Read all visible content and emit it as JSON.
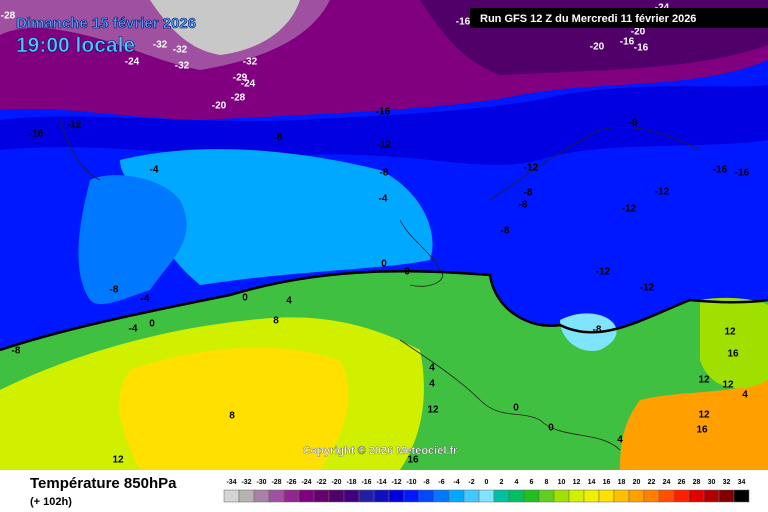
{
  "header": {
    "date": "Dimanche 15 février 2026",
    "time": "19:00 locale",
    "run": "Run GFS 12 Z du Mercredi 11 février 2026"
  },
  "copyright": "Copyright © 2026 Meteociel.fr",
  "footer": {
    "title": "Température 850hPa",
    "lead": "(+ 102h)"
  },
  "legend": {
    "values": [
      -34,
      -32,
      -30,
      -28,
      -26,
      -24,
      -22,
      -20,
      -18,
      -16,
      -14,
      -12,
      -10,
      -8,
      -6,
      -4,
      -2,
      0,
      2,
      4,
      6,
      8,
      10,
      12,
      14,
      16,
      18,
      20,
      22,
      24,
      26,
      28,
      30,
      32,
      34
    ],
    "colors": [
      "#d4d4d4",
      "#b4b4b4",
      "#a880a8",
      "#a050a0",
      "#902890",
      "#800080",
      "#680070",
      "#500068",
      "#400080",
      "#2020a0",
      "#1010c0",
      "#0000e0",
      "#0018ff",
      "#0048ff",
      "#0078ff",
      "#00a8ff",
      "#40c8ff",
      "#80e4ff",
      "#00c0a0",
      "#00c060",
      "#20c020",
      "#60d020",
      "#a0e000",
      "#d0f000",
      "#f0f000",
      "#ffe000",
      "#ffc000",
      "#ffa000",
      "#ff8000",
      "#ff5000",
      "#ff2000",
      "#e00000",
      "#b00000",
      "#800000",
      "#000000"
    ]
  },
  "map_labels": [
    -28,
    -32,
    -32,
    -24,
    -32,
    -32,
    -29,
    -24,
    -28,
    -20,
    -16,
    -12,
    -8,
    -16,
    -12,
    -8,
    -4,
    -4,
    -8,
    -4,
    -4,
    0,
    0,
    4,
    8,
    -8,
    0,
    0,
    -12,
    -8,
    -8,
    -8,
    -8,
    -12,
    -12,
    -12,
    -12,
    -16,
    -16,
    -20,
    -16,
    -16,
    -20,
    -24,
    -16,
    12,
    8,
    4,
    4,
    12,
    16,
    0,
    0,
    4,
    12,
    16,
    12,
    12,
    16,
    12,
    -8,
    4
  ]
}
